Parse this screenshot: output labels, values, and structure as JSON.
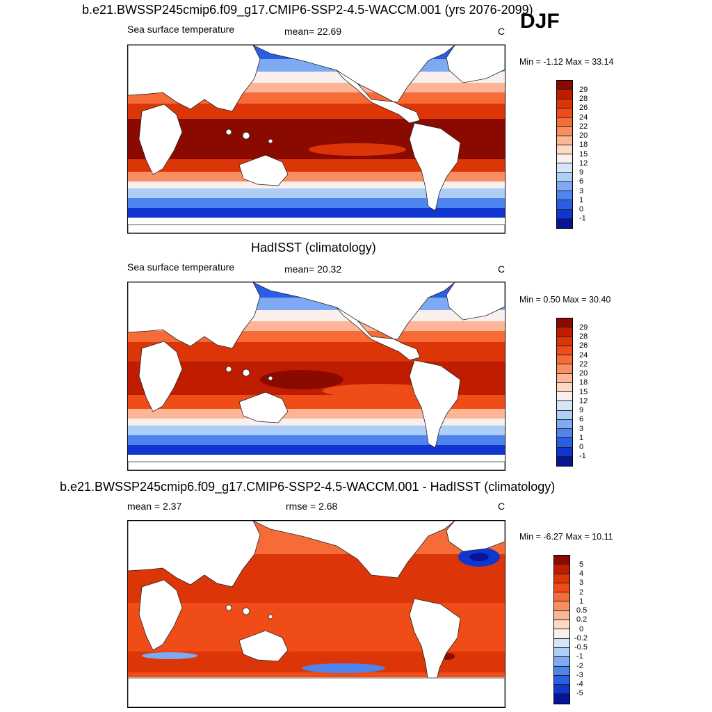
{
  "season": "DJF",
  "panel1": {
    "title": "b.e21.BWSSP245cmip6.f09_g17.CMIP6-SSP2-4.5-WACCM.001 (yrs 2076-2099)",
    "left_label": "Sea surface temperature",
    "center_label": "mean=  22.69",
    "unit": "C",
    "minmax": "Min =  -1.12 Max =  33.14"
  },
  "panel2": {
    "title": "HadISST (climatology)",
    "left_label": "Sea surface temperature",
    "center_label": "mean=  20.32",
    "unit": "C",
    "minmax": "Min =   0.50 Max =  30.40"
  },
  "panel3": {
    "title": "b.e21.BWSSP245cmip6.f09_g17.CMIP6-SSP2-4.5-WACCM.001 - HadISST (climatology)",
    "left_label": "mean =   2.37",
    "center_label": "rmse =   2.68",
    "unit": "C",
    "minmax": "Min =  -6.27 Max =  10.11"
  },
  "colorbar_sst": {
    "labels": [
      "29",
      "28",
      "26",
      "24",
      "22",
      "20",
      "18",
      "15",
      "12",
      "9",
      "6",
      "3",
      "1",
      "0",
      "-1"
    ],
    "colors": [
      "#8b0a00",
      "#c01c00",
      "#dc3608",
      "#f04c18",
      "#f76b38",
      "#f98e62",
      "#fcb696",
      "#fdd9c4",
      "#f9f0ee",
      "#d6e6f8",
      "#aecdf7",
      "#7ea9f3",
      "#4f84ee",
      "#2a5ee5",
      "#0f36cf",
      "#071496"
    ]
  },
  "colorbar_diff": {
    "labels": [
      "5",
      "4",
      "3",
      "2",
      "1",
      "0.5",
      "0.2",
      "0",
      "-0.2",
      "-0.5",
      "-1",
      "-2",
      "-3",
      "-4",
      "-5"
    ],
    "colors": [
      "#8b0a00",
      "#c01c00",
      "#dc3608",
      "#f04c18",
      "#f76b38",
      "#f98e62",
      "#fcb696",
      "#fdd9c4",
      "#f9f0ee",
      "#d6e6f8",
      "#aecdf7",
      "#7ea9f3",
      "#4f84ee",
      "#2a5ee5",
      "#0f36cf",
      "#071496"
    ]
  }
}
